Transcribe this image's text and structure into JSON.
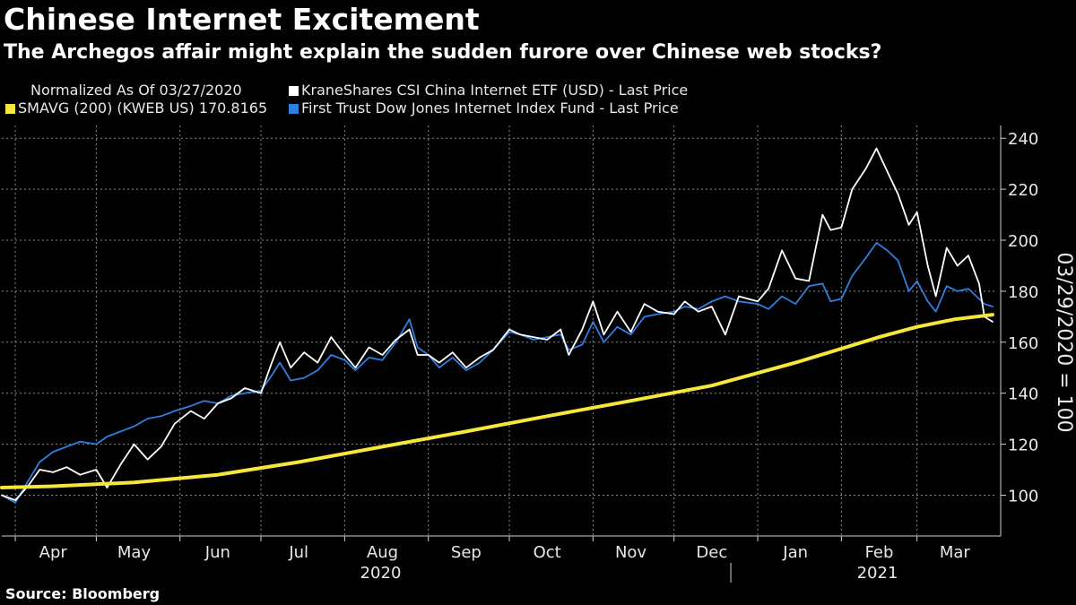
{
  "header": {
    "title": "Chinese Internet Excitement",
    "subtitle": "The Archegos affair might explain the sudden furore over Chinese web stocks?"
  },
  "legend": {
    "normalized": "Normalized As Of 03/27/2020",
    "kweb": "KraneShares CSI China Internet ETF (USD) - Last Price",
    "sma": "SMAVG (200) (KWEB US) 170.8165",
    "fdn": "First Trust Dow Jones Internet Index Fund - Last Price"
  },
  "footer": {
    "source": "Source: Bloomberg"
  },
  "colors": {
    "kweb": "#ffffff",
    "fdn": "#2e7fe0",
    "sma": "#f5e83a",
    "background": "#000000"
  },
  "chart_data": {
    "type": "line",
    "ylabel": "03/29/2020 = 100",
    "ylim": [
      84,
      245
    ],
    "y_ticks": [
      100,
      120,
      140,
      160,
      180,
      200,
      220,
      240
    ],
    "xlim": [
      "2020-03-27",
      "2021-04-01"
    ],
    "x_ticks": [
      {
        "label": "Apr",
        "date": "2020-04-15"
      },
      {
        "label": "May",
        "date": "2020-05-15"
      },
      {
        "label": "Jun",
        "date": "2020-06-15"
      },
      {
        "label": "Jul",
        "date": "2020-07-15"
      },
      {
        "label": "Aug",
        "date": "2020-08-15"
      },
      {
        "label": "Sep",
        "date": "2020-09-15"
      },
      {
        "label": "Oct",
        "date": "2020-10-15"
      },
      {
        "label": "Nov",
        "date": "2020-11-15"
      },
      {
        "label": "Dec",
        "date": "2020-12-15"
      },
      {
        "label": "Jan",
        "date": "2021-01-15"
      },
      {
        "label": "Feb",
        "date": "2021-02-15"
      },
      {
        "label": "Mar",
        "date": "2021-03-15"
      }
    ],
    "years": [
      {
        "label": "2020",
        "date": "2020-08-15"
      },
      {
        "label": "2021",
        "date": "2021-02-15"
      }
    ],
    "year_divider": "2021-01-01",
    "series": [
      {
        "name": "KraneShares CSI China Internet ETF (USD) - Last Price",
        "color": "#ffffff",
        "points": [
          [
            "2020-03-27",
            100
          ],
          [
            "2020-04-01",
            98
          ],
          [
            "2020-04-06",
            104
          ],
          [
            "2020-04-10",
            110
          ],
          [
            "2020-04-15",
            109
          ],
          [
            "2020-04-20",
            111
          ],
          [
            "2020-04-25",
            108
          ],
          [
            "2020-05-01",
            110
          ],
          [
            "2020-05-05",
            103
          ],
          [
            "2020-05-10",
            112
          ],
          [
            "2020-05-15",
            120
          ],
          [
            "2020-05-20",
            114
          ],
          [
            "2020-05-25",
            119
          ],
          [
            "2020-05-30",
            128
          ],
          [
            "2020-06-05",
            133
          ],
          [
            "2020-06-10",
            130
          ],
          [
            "2020-06-15",
            136
          ],
          [
            "2020-06-20",
            138
          ],
          [
            "2020-06-25",
            142
          ],
          [
            "2020-07-01",
            140
          ],
          [
            "2020-07-05",
            152
          ],
          [
            "2020-07-08",
            160
          ],
          [
            "2020-07-12",
            150
          ],
          [
            "2020-07-17",
            156
          ],
          [
            "2020-07-22",
            152
          ],
          [
            "2020-07-27",
            162
          ],
          [
            "2020-08-01",
            155
          ],
          [
            "2020-08-05",
            150
          ],
          [
            "2020-08-10",
            158
          ],
          [
            "2020-08-15",
            155
          ],
          [
            "2020-08-20",
            161
          ],
          [
            "2020-08-25",
            165
          ],
          [
            "2020-08-28",
            155
          ],
          [
            "2020-09-01",
            155
          ],
          [
            "2020-09-05",
            152
          ],
          [
            "2020-09-10",
            156
          ],
          [
            "2020-09-15",
            150
          ],
          [
            "2020-09-20",
            154
          ],
          [
            "2020-09-25",
            157
          ],
          [
            "2020-10-01",
            165
          ],
          [
            "2020-10-05",
            163
          ],
          [
            "2020-10-10",
            162
          ],
          [
            "2020-10-15",
            161
          ],
          [
            "2020-10-20",
            165
          ],
          [
            "2020-10-23",
            155
          ],
          [
            "2020-10-28",
            165
          ],
          [
            "2020-11-01",
            176
          ],
          [
            "2020-11-05",
            163
          ],
          [
            "2020-11-10",
            172
          ],
          [
            "2020-11-15",
            164
          ],
          [
            "2020-11-20",
            175
          ],
          [
            "2020-11-25",
            172
          ],
          [
            "2020-12-01",
            171
          ],
          [
            "2020-12-05",
            176
          ],
          [
            "2020-12-10",
            172
          ],
          [
            "2020-12-15",
            174
          ],
          [
            "2020-12-20",
            163
          ],
          [
            "2020-12-25",
            178
          ],
          [
            "2021-01-01",
            176
          ],
          [
            "2021-01-05",
            181
          ],
          [
            "2021-01-10",
            196
          ],
          [
            "2021-01-15",
            185
          ],
          [
            "2021-01-20",
            184
          ],
          [
            "2021-01-25",
            210
          ],
          [
            "2021-01-28",
            204
          ],
          [
            "2021-02-01",
            205
          ],
          [
            "2021-02-05",
            220
          ],
          [
            "2021-02-10",
            228
          ],
          [
            "2021-02-14",
            236
          ],
          [
            "2021-02-18",
            227
          ],
          [
            "2021-02-22",
            218
          ],
          [
            "2021-02-26",
            206
          ],
          [
            "2021-03-01",
            211
          ],
          [
            "2021-03-05",
            190
          ],
          [
            "2021-03-08",
            178
          ],
          [
            "2021-03-12",
            197
          ],
          [
            "2021-03-16",
            190
          ],
          [
            "2021-03-20",
            194
          ],
          [
            "2021-03-24",
            183
          ],
          [
            "2021-03-26",
            170
          ],
          [
            "2021-03-29",
            168
          ]
        ]
      },
      {
        "name": "First Trust Dow Jones Internet Index Fund - Last Price",
        "color": "#2e7fe0",
        "points": [
          [
            "2020-03-27",
            100
          ],
          [
            "2020-04-01",
            97
          ],
          [
            "2020-04-06",
            106
          ],
          [
            "2020-04-10",
            113
          ],
          [
            "2020-04-15",
            117
          ],
          [
            "2020-04-20",
            119
          ],
          [
            "2020-04-25",
            121
          ],
          [
            "2020-05-01",
            120
          ],
          [
            "2020-05-05",
            123
          ],
          [
            "2020-05-10",
            125
          ],
          [
            "2020-05-15",
            127
          ],
          [
            "2020-05-20",
            130
          ],
          [
            "2020-05-25",
            131
          ],
          [
            "2020-05-30",
            133
          ],
          [
            "2020-06-05",
            135
          ],
          [
            "2020-06-10",
            137
          ],
          [
            "2020-06-15",
            136
          ],
          [
            "2020-06-20",
            139
          ],
          [
            "2020-06-25",
            140
          ],
          [
            "2020-07-01",
            141
          ],
          [
            "2020-07-05",
            147
          ],
          [
            "2020-07-08",
            152
          ],
          [
            "2020-07-12",
            145
          ],
          [
            "2020-07-17",
            146
          ],
          [
            "2020-07-22",
            149
          ],
          [
            "2020-07-27",
            155
          ],
          [
            "2020-08-01",
            153
          ],
          [
            "2020-08-05",
            149
          ],
          [
            "2020-08-10",
            154
          ],
          [
            "2020-08-15",
            153
          ],
          [
            "2020-08-20",
            160
          ],
          [
            "2020-08-25",
            169
          ],
          [
            "2020-08-28",
            158
          ],
          [
            "2020-09-01",
            155
          ],
          [
            "2020-09-05",
            150
          ],
          [
            "2020-09-10",
            154
          ],
          [
            "2020-09-15",
            149
          ],
          [
            "2020-09-20",
            152
          ],
          [
            "2020-09-25",
            157
          ],
          [
            "2020-10-01",
            164
          ],
          [
            "2020-10-05",
            163
          ],
          [
            "2020-10-10",
            161
          ],
          [
            "2020-10-15",
            162
          ],
          [
            "2020-10-20",
            163
          ],
          [
            "2020-10-23",
            157
          ],
          [
            "2020-10-28",
            159
          ],
          [
            "2020-11-01",
            168
          ],
          [
            "2020-11-05",
            160
          ],
          [
            "2020-11-10",
            166
          ],
          [
            "2020-11-15",
            163
          ],
          [
            "2020-11-20",
            170
          ],
          [
            "2020-11-25",
            171
          ],
          [
            "2020-12-01",
            172
          ],
          [
            "2020-12-05",
            174
          ],
          [
            "2020-12-10",
            173
          ],
          [
            "2020-12-15",
            176
          ],
          [
            "2020-12-20",
            178
          ],
          [
            "2020-12-25",
            176
          ],
          [
            "2021-01-01",
            175
          ],
          [
            "2021-01-05",
            173
          ],
          [
            "2021-01-10",
            178
          ],
          [
            "2021-01-15",
            175
          ],
          [
            "2021-01-20",
            182
          ],
          [
            "2021-01-25",
            183
          ],
          [
            "2021-01-28",
            176
          ],
          [
            "2021-02-01",
            177
          ],
          [
            "2021-02-05",
            186
          ],
          [
            "2021-02-10",
            193
          ],
          [
            "2021-02-14",
            199
          ],
          [
            "2021-02-18",
            196
          ],
          [
            "2021-02-22",
            192
          ],
          [
            "2021-02-26",
            180
          ],
          [
            "2021-03-01",
            184
          ],
          [
            "2021-03-05",
            176
          ],
          [
            "2021-03-08",
            172
          ],
          [
            "2021-03-12",
            182
          ],
          [
            "2021-03-16",
            180
          ],
          [
            "2021-03-20",
            181
          ],
          [
            "2021-03-24",
            177
          ],
          [
            "2021-03-26",
            175
          ],
          [
            "2021-03-29",
            174
          ]
        ]
      },
      {
        "name": "SMAVG (200) (KWEB US) 170.8165",
        "color": "#f5e83a",
        "points": [
          [
            "2020-03-27",
            103
          ],
          [
            "2020-04-15",
            103.5
          ],
          [
            "2020-05-15",
            105
          ],
          [
            "2020-06-15",
            108
          ],
          [
            "2020-07-15",
            113
          ],
          [
            "2020-08-15",
            119
          ],
          [
            "2020-09-15",
            125
          ],
          [
            "2020-10-15",
            131
          ],
          [
            "2020-11-15",
            137
          ],
          [
            "2020-12-15",
            143
          ],
          [
            "2021-01-15",
            152
          ],
          [
            "2021-02-15",
            162
          ],
          [
            "2021-03-01",
            166
          ],
          [
            "2021-03-15",
            169
          ],
          [
            "2021-03-29",
            170.8
          ]
        ]
      }
    ]
  }
}
